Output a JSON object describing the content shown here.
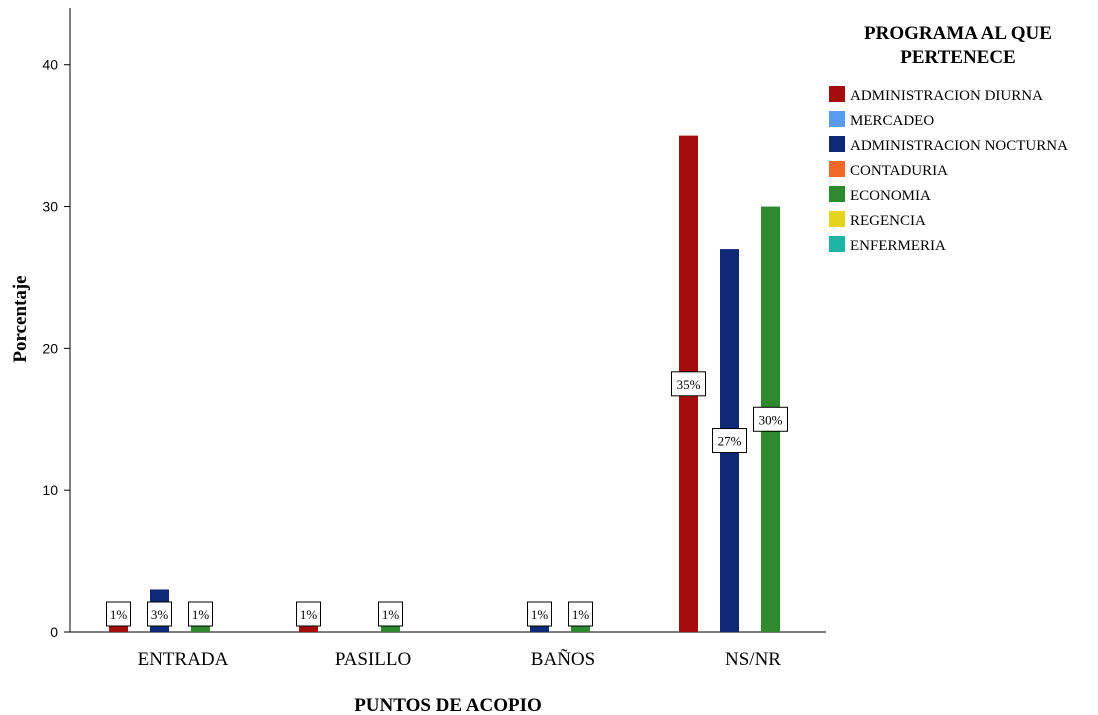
{
  "chart_data": {
    "type": "bar",
    "ylabel": "Porcentaje",
    "xlabel": "PUNTOS DE ACOPIO",
    "legend_title": "PROGRAMA AL QUE PERTENECE",
    "legend_title_lines": [
      "PROGRAMA AL QUE",
      "PERTENECE"
    ],
    "legend_position": "right",
    "ylim": [
      0,
      44
    ],
    "yticks": [
      0,
      10,
      20,
      30,
      40
    ],
    "ytick_labels": [
      "0",
      "10",
      "20",
      "30",
      "40"
    ],
    "grid": false,
    "categories": [
      "ENTRADA",
      "PASILLO",
      "BAÑOS",
      "NS/NR"
    ],
    "series": [
      {
        "name": "ADMINISTRACION DIURNA",
        "color": "#a50d0d",
        "values": [
          1,
          1,
          null,
          35
        ],
        "labels": [
          "1%",
          "1%",
          "",
          "35%"
        ]
      },
      {
        "name": "MERCADEO",
        "color": "#5b9bef",
        "values": [
          null,
          null,
          null,
          null
        ],
        "labels": [
          "",
          "",
          "",
          ""
        ]
      },
      {
        "name": "ADMINISTRACION NOCTURNA",
        "color": "#0e2a76",
        "values": [
          3,
          null,
          1,
          27
        ],
        "labels": [
          "3%",
          "",
          "1%",
          "27%"
        ]
      },
      {
        "name": "CONTADURIA",
        "color": "#f2682a",
        "values": [
          null,
          null,
          null,
          null
        ],
        "labels": [
          "",
          "",
          "",
          ""
        ]
      },
      {
        "name": "ECONOMIA",
        "color": "#2f8a2f",
        "values": [
          1,
          1,
          1,
          30
        ],
        "labels": [
          "1%",
          "1%",
          "1%",
          "30%"
        ]
      },
      {
        "name": "REGENCIA",
        "color": "#e6d41c",
        "values": [
          null,
          null,
          null,
          null
        ],
        "labels": [
          "",
          "",
          "",
          ""
        ]
      },
      {
        "name": "ENFERMERIA",
        "color": "#1fb5a6",
        "values": [
          null,
          null,
          null,
          null
        ],
        "labels": [
          "",
          "",
          "",
          ""
        ]
      }
    ]
  }
}
